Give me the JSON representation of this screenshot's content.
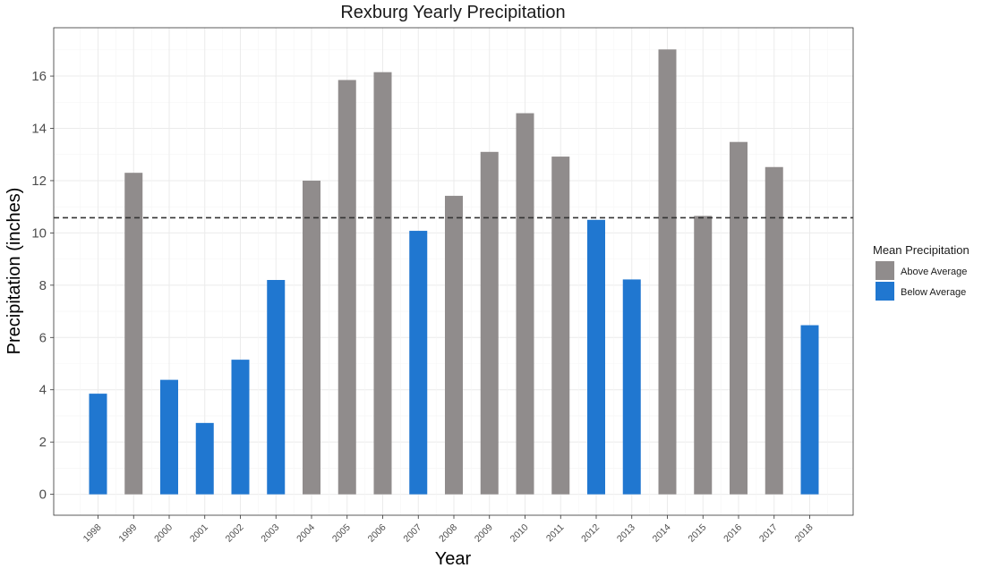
{
  "chart_data": {
    "type": "bar",
    "title": "Rexburg Yearly Precipitation",
    "xlabel": "Year",
    "ylabel": "Precipitation (inches)",
    "categories": [
      "1998",
      "1999",
      "2000",
      "2001",
      "2002",
      "2003",
      "2004",
      "2005",
      "2006",
      "2007",
      "2008",
      "2009",
      "2010",
      "2011",
      "2012",
      "2013",
      "2014",
      "2015",
      "2016",
      "2017",
      "2018"
    ],
    "values": [
      3.85,
      12.3,
      4.38,
      2.73,
      5.15,
      8.2,
      12.0,
      15.85,
      16.15,
      10.08,
      11.42,
      13.1,
      14.58,
      12.92,
      10.5,
      8.22,
      17.02,
      10.65,
      13.48,
      12.52,
      6.47
    ],
    "groups": [
      "Below Average",
      "Above Average",
      "Below Average",
      "Below Average",
      "Below Average",
      "Below Average",
      "Above Average",
      "Above Average",
      "Above Average",
      "Below Average",
      "Above Average",
      "Above Average",
      "Above Average",
      "Above Average",
      "Below Average",
      "Below Average",
      "Above Average",
      "Above Average",
      "Above Average",
      "Above Average",
      "Below Average"
    ],
    "mean_line": 10.58,
    "ylim": [
      -0.8,
      17.85
    ],
    "yticks": [
      0,
      2,
      4,
      6,
      8,
      10,
      12,
      14,
      16
    ],
    "grid": true,
    "legend": {
      "title": "Mean Precipitation",
      "position": "right",
      "entries": [
        {
          "name": "Above Average",
          "color": "#908c8c"
        },
        {
          "name": "Below Average",
          "color": "#2077d0"
        }
      ]
    }
  }
}
